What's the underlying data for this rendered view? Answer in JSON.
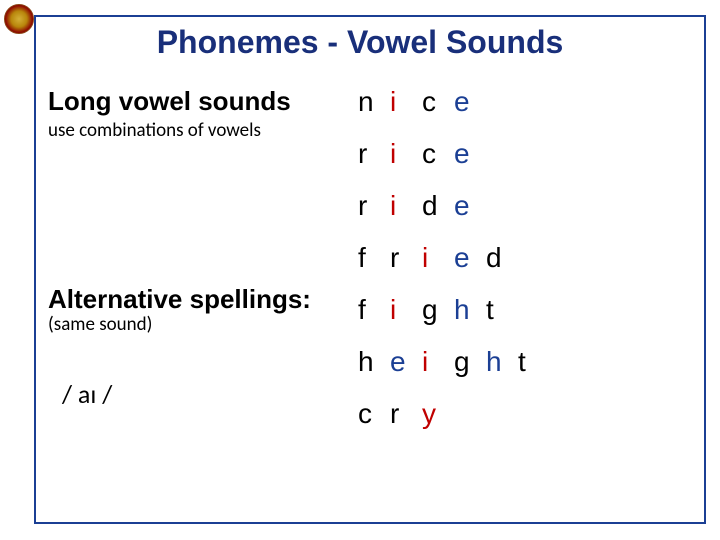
{
  "title": "Phonemes  - Vowel Sounds",
  "section1": {
    "heading": "Long vowel sounds",
    "sub": "use combinations of vowels"
  },
  "section2": {
    "heading": "Alternative spellings:",
    "sub": "(same sound)"
  },
  "ipa": "/ aɪ /",
  "colors": {
    "black": "#000000",
    "red": "#c00000",
    "blue": "#1b3f94",
    "border": "#1b3f94"
  },
  "words": [
    {
      "letters": [
        "n",
        "i",
        "c",
        "e"
      ],
      "classes": [
        "black",
        "red",
        "black",
        "blue"
      ]
    },
    {
      "letters": [
        "r",
        "i",
        "c",
        "e"
      ],
      "classes": [
        "black",
        "red",
        "black",
        "blue"
      ]
    },
    {
      "letters": [
        "r",
        "i",
        "d",
        "e"
      ],
      "classes": [
        "black",
        "red",
        "black",
        "blue"
      ]
    },
    {
      "letters": [
        "f",
        "r",
        "i",
        "e",
        "d"
      ],
      "classes": [
        "black",
        "black",
        "red",
        "blue",
        "black"
      ]
    },
    {
      "letters": [
        "f",
        "i",
        "g",
        "h",
        "t"
      ],
      "classes": [
        "black",
        "red",
        "black",
        "blue",
        "black"
      ]
    },
    {
      "letters": [
        "h",
        "e",
        "i",
        "g",
        "h",
        "t"
      ],
      "classes": [
        "black",
        "blue",
        "red",
        "black",
        "blue",
        "black"
      ]
    },
    {
      "letters": [
        "c",
        "r",
        "y"
      ],
      "classes": [
        "black",
        "black",
        "red"
      ]
    }
  ]
}
